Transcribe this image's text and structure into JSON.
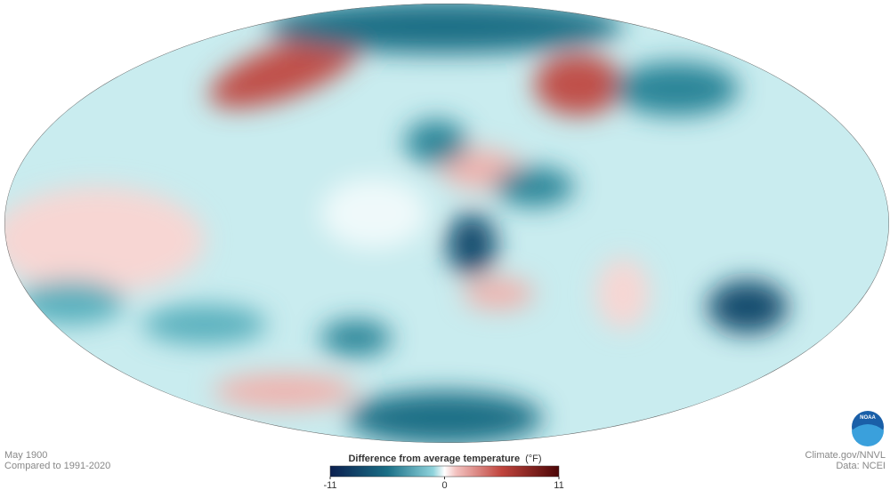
{
  "header": {
    "date": "May 1900",
    "baseline": "Compared to 1991-2020"
  },
  "legend": {
    "title": "Difference from average temperature",
    "unit": "(°F)",
    "lim": [
      -11,
      11
    ],
    "ticks": [
      -11,
      0,
      11
    ]
  },
  "credits": {
    "source": "Climate.gov/NNVL",
    "data": "Data: NCEI",
    "logo": "NOAA"
  }
}
